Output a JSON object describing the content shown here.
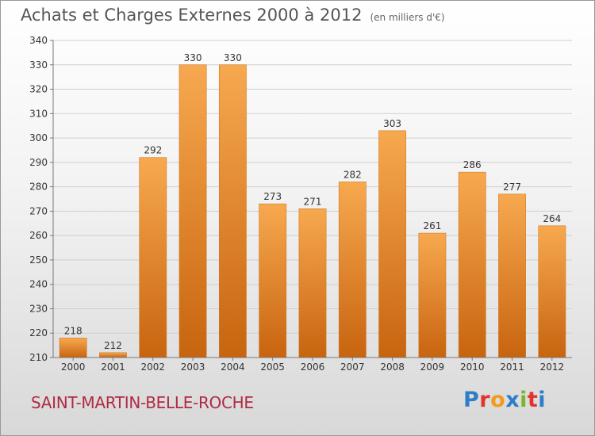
{
  "header": {
    "title": "Achats et Charges Externes 2000 à 2012",
    "unit": "(en milliers d'€)"
  },
  "footer": {
    "town": "SAINT-MARTIN-BELLE-ROCHE",
    "logo": "Proxiti",
    "logo_colors": [
      "#2e7dc9",
      "#e2342b",
      "#f29a1c",
      "#2e7dc9",
      "#7cb52d",
      "#e2342b",
      "#2e7dc9"
    ]
  },
  "colors": {
    "bar_light": "#f7a94f",
    "bar_dark": "#c8640f",
    "grid": "#cfcfcf"
  },
  "chart_data": {
    "type": "bar",
    "categories": [
      "2000",
      "2001",
      "2002",
      "2003",
      "2004",
      "2005",
      "2006",
      "2007",
      "2008",
      "2009",
      "2010",
      "2011",
      "2012"
    ],
    "values": [
      218,
      212,
      292,
      330,
      330,
      273,
      271,
      282,
      303,
      261,
      286,
      277,
      264
    ],
    "ylim": [
      210,
      340
    ],
    "yticks": [
      210,
      220,
      230,
      240,
      250,
      260,
      270,
      280,
      290,
      300,
      310,
      320,
      330,
      340
    ],
    "grid": true,
    "legend": "none"
  }
}
